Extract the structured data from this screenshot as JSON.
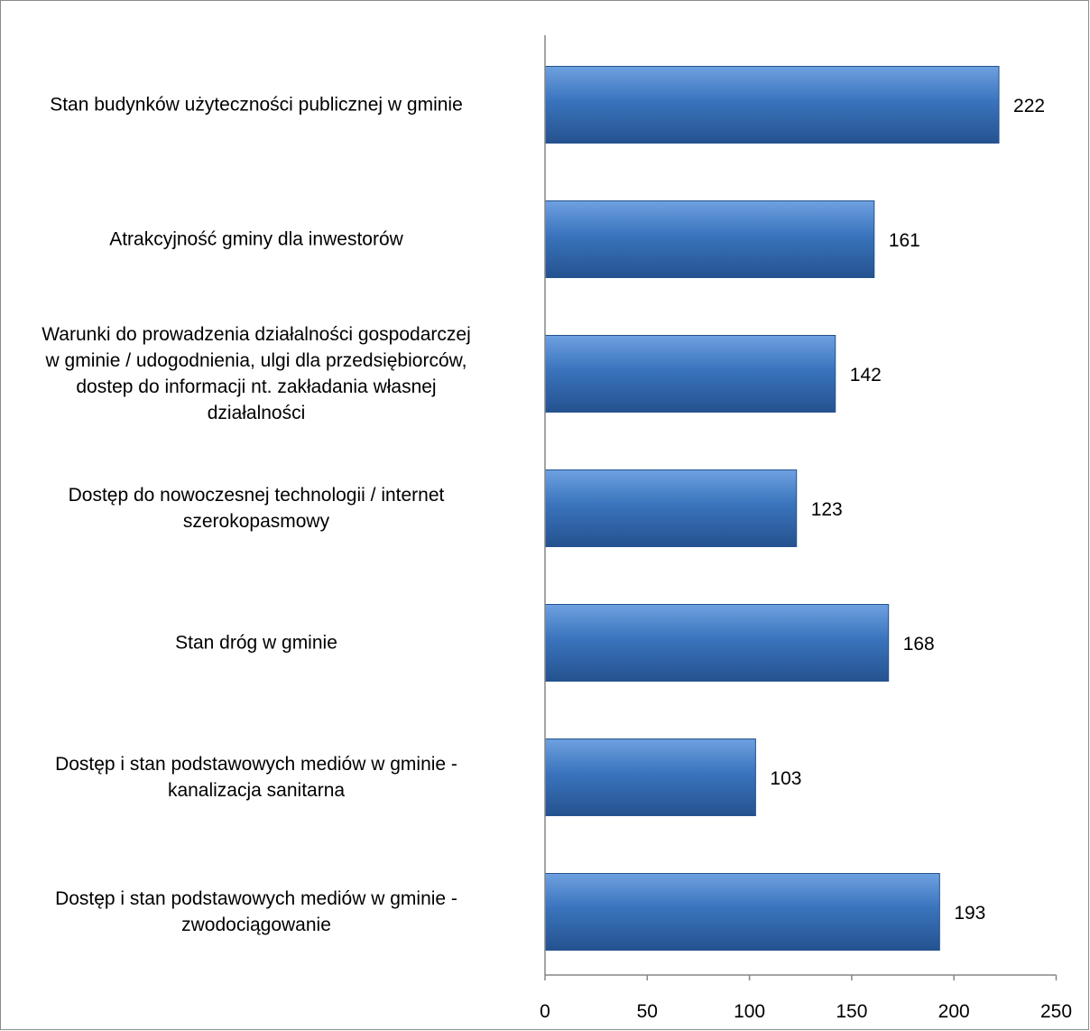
{
  "chart_data": {
    "type": "bar",
    "orientation": "horizontal",
    "categories": [
      "Stan budynków użyteczności publicznej w gminie",
      "Atrakcyjność gminy dla inwestorów",
      "Warunki do prowadzenia działalności gospodarczej w gminie / udogodnienia, ulgi dla przedsiębiorców, dostep do informacji nt. zakładania własnej działalności",
      "Dostęp do nowoczesnej technologii / internet szerokopasmowy",
      "Stan dróg w gminie",
      "Dostęp i stan podstawowych mediów w gminie - kanalizacja sanitarna",
      "Dostęp i stan podstawowych mediów w gminie - zwodociągowanie"
    ],
    "category_lines": [
      [
        "Stan budynków użyteczności publicznej w gminie"
      ],
      [
        "Atrakcyjność gminy dla inwestorów"
      ],
      [
        "Warunki do prowadzenia działalności gospodarczej",
        "w gminie / udogodnienia, ulgi dla przedsiębiorców,",
        "dostep do informacji nt. zakładania własnej",
        "działalności"
      ],
      [
        "Dostęp do nowoczesnej technologii / internet",
        "szerokopasmowy"
      ],
      [
        "Stan dróg w gminie"
      ],
      [
        "Dostęp i stan podstawowych mediów w gminie -",
        "kanalizacja sanitarna"
      ],
      [
        "Dostęp i stan podstawowych mediów w gminie -",
        "zwodociągowanie"
      ]
    ],
    "values": [
      222,
      161,
      142,
      123,
      168,
      103,
      193
    ],
    "value_labels": [
      "222",
      "161",
      "142",
      "123",
      "168",
      "103",
      "193"
    ],
    "xlim": [
      0,
      250
    ],
    "xticks": [
      0,
      50,
      100,
      150,
      200,
      250
    ],
    "xtick_labels": [
      "0",
      "50",
      "100",
      "150",
      "200",
      "250"
    ],
    "grid": false,
    "legend": "none",
    "bar_color": "#3a74bd",
    "bar_color_light": "#6ea1e0",
    "bar_color_dark": "#25528f"
  }
}
